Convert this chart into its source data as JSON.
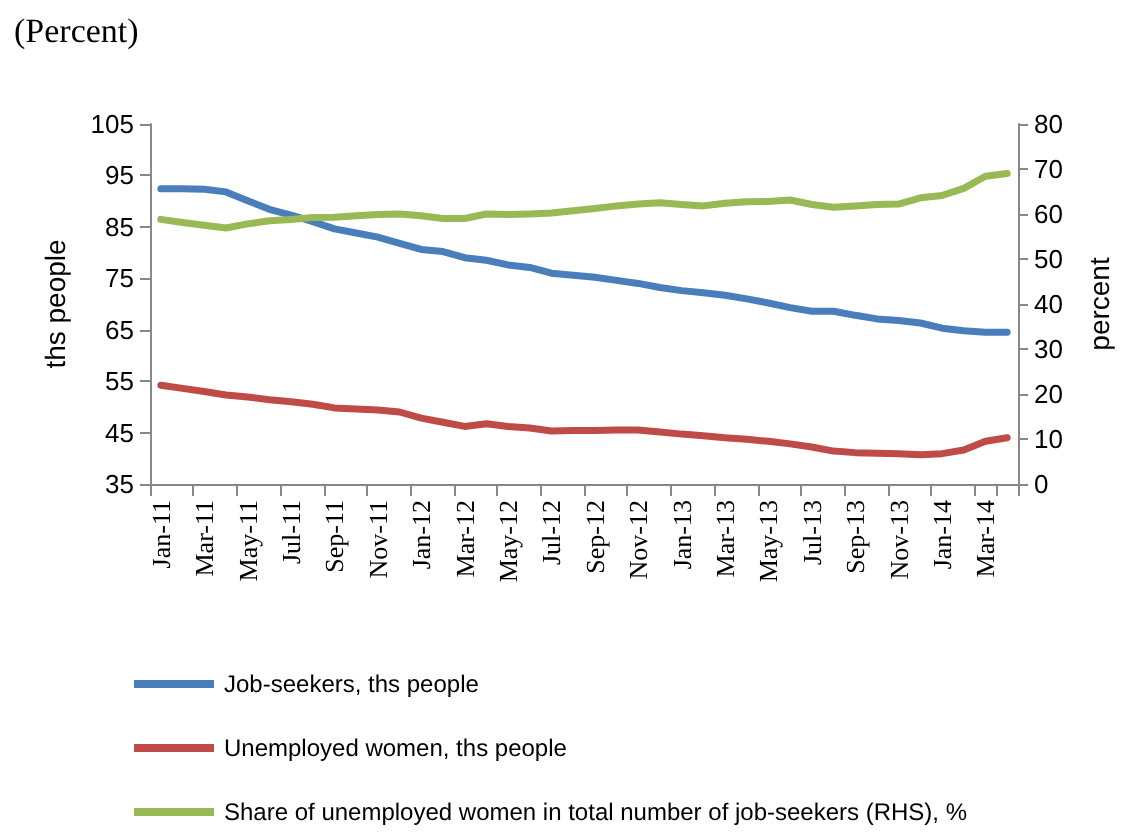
{
  "chart_data": {
    "type": "line",
    "title": "(Percent)",
    "ylabel": "ths people",
    "y2label": "percent",
    "categories": [
      "Jan-11",
      null,
      "Mar-11",
      null,
      "May-11",
      null,
      "Jul-11",
      null,
      "Sep-11",
      null,
      "Nov-11",
      null,
      "Jan-12",
      null,
      "Mar-12",
      null,
      "May-12",
      null,
      "Jul-12",
      null,
      "Sep-12",
      null,
      "Nov-12",
      null,
      "Jan-13",
      null,
      "Mar-13",
      null,
      "May-13",
      null,
      "Jul-13",
      null,
      "Sep-13",
      null,
      "Nov-13",
      null,
      "Jan-14",
      null,
      "Mar-14",
      null
    ],
    "ylim": [
      35,
      105
    ],
    "yticks": [
      35,
      45,
      55,
      65,
      75,
      85,
      95,
      105
    ],
    "y2lim": [
      0,
      80
    ],
    "y2ticks": [
      0,
      10,
      20,
      30,
      40,
      50,
      60,
      70,
      80
    ],
    "grid": false,
    "legend": "bottom",
    "marker": "none",
    "line_style": "solid",
    "series": [
      {
        "name": "Job-seekers, ths people",
        "color": "#4a7ebb",
        "values": [
          92.4,
          92.4,
          92.3,
          91.8,
          90.1,
          88.4,
          87.3,
          86.0,
          84.6,
          83.8,
          83.0,
          81.8,
          80.6,
          80.2,
          79.0,
          78.5,
          77.6,
          77.1,
          76.0,
          75.6,
          75.2,
          74.6,
          74.0,
          73.2,
          72.6,
          72.2,
          71.7,
          71.0,
          70.2,
          69.3,
          68.6,
          68.6,
          67.8,
          67.1,
          66.8,
          66.3,
          65.3,
          64.8,
          64.5,
          64.5
        ]
      },
      {
        "name": "Unemployed women, ths people",
        "color": "#be4b48",
        "values": [
          54.2,
          53.6,
          53.0,
          52.3,
          51.9,
          51.4,
          51.0,
          50.5,
          49.8,
          49.6,
          49.4,
          49.0,
          47.8,
          47.0,
          46.2,
          46.7,
          46.2,
          45.9,
          45.3,
          45.4,
          45.4,
          45.5,
          45.5,
          45.1,
          44.7,
          44.4,
          44.0,
          43.7,
          43.3,
          42.8,
          42.2,
          41.4,
          41.1,
          41.0,
          40.9,
          40.7,
          40.9,
          41.6,
          43.3,
          44.0
        ]
      },
      {
        "name": "Share of unemployed women in total number of job-seekers (RHS), %",
        "color": "#98b954",
        "axis": "y2",
        "values": [
          58.8,
          58.1,
          57.5,
          56.9,
          57.8,
          58.5,
          58.8,
          59.2,
          59.3,
          59.6,
          59.9,
          60.0,
          59.6,
          59.0,
          59.0,
          60.0,
          59.9,
          60.0,
          60.2,
          60.7,
          61.2,
          61.8,
          62.2,
          62.5,
          62.1,
          61.8,
          62.4,
          62.7,
          62.8,
          63.1,
          62.1,
          61.5,
          61.8,
          62.1,
          62.2,
          63.6,
          64.1,
          65.7,
          68.4,
          69.0
        ]
      }
    ]
  }
}
